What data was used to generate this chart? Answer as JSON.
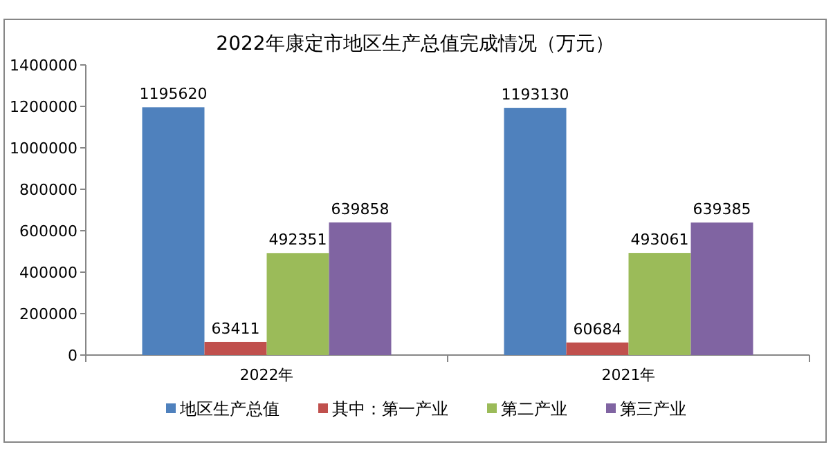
{
  "chart_data": {
    "type": "bar",
    "title": "2022年康定市地区生产总值完成情况（万元）",
    "categories": [
      "2022年",
      "2021年"
    ],
    "series": [
      {
        "name": "地区生产总值",
        "color": "#4f81bd",
        "values": [
          1195620,
          1193130
        ]
      },
      {
        "name": "其中：第一产业",
        "color": "#c0504d",
        "values": [
          63411,
          60684
        ]
      },
      {
        "name": "第二产业",
        "color": "#9bbb59",
        "values": [
          492351,
          493061
        ]
      },
      {
        "name": "第三产业",
        "color": "#8064a2",
        "values": [
          639858,
          639385
        ]
      }
    ],
    "ylim": [
      0,
      1400000
    ],
    "yticks": [
      0,
      200000,
      400000,
      600000,
      800000,
      1000000,
      1200000,
      1400000
    ],
    "data_labels": true,
    "legend": "bottom",
    "grid": false
  }
}
